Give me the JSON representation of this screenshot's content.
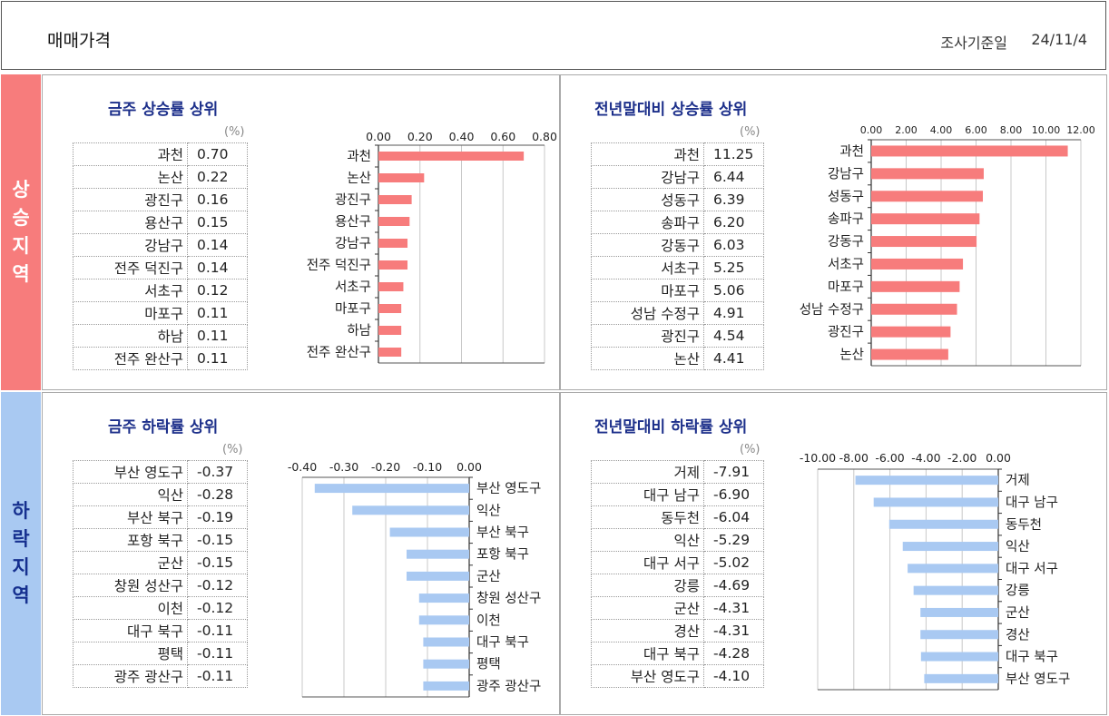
{
  "header": {
    "title": "매매가격",
    "date_label": "조사기준일",
    "date_value": "24/11/4"
  },
  "sections": {
    "up_label": [
      "상",
      "승",
      "지",
      "역"
    ],
    "down_label": [
      "하",
      "락",
      "지",
      "역"
    ]
  },
  "panels": {
    "weekly_up": {
      "title": "금주 상승률 상위",
      "unit": "(%)"
    },
    "yearly_up": {
      "title": "전년말대비 상승률 상위",
      "unit": "(%)"
    },
    "weekly_down": {
      "title": "금주 하락률 상위",
      "unit": "(%)"
    },
    "yearly_down": {
      "title": "전년말대비 하락률 상위",
      "unit": "(%)"
    }
  },
  "colors": {
    "up_bar": "#f77c7c",
    "down_bar": "#a9c9f2",
    "title": "#1c2f8a"
  },
  "chart_data": [
    {
      "id": "weekly_up",
      "type": "bar",
      "orientation": "horizontal",
      "categories": [
        "과천",
        "논산",
        "광진구",
        "용산구",
        "강남구",
        "전주 덕진구",
        "서초구",
        "마포구",
        "하남",
        "전주 완산구"
      ],
      "values": [
        0.7,
        0.22,
        0.16,
        0.15,
        0.14,
        0.14,
        0.12,
        0.11,
        0.11,
        0.11
      ],
      "value_labels": [
        "0.70",
        "0.22",
        "0.16",
        "0.15",
        "0.14",
        "0.14",
        "0.12",
        "0.11",
        "0.11",
        "0.11"
      ],
      "xlim": [
        0,
        0.8
      ],
      "ticks": [
        0,
        0.2,
        0.4,
        0.6,
        0.8
      ],
      "tick_labels": [
        "0.00",
        "0.20",
        "0.40",
        "0.60",
        "0.80"
      ],
      "grid": true,
      "label_side": "left"
    },
    {
      "id": "yearly_up",
      "type": "bar",
      "orientation": "horizontal",
      "categories": [
        "과천",
        "강남구",
        "성동구",
        "송파구",
        "강동구",
        "서초구",
        "마포구",
        "성남 수정구",
        "광진구",
        "논산"
      ],
      "values": [
        11.25,
        6.44,
        6.39,
        6.2,
        6.03,
        5.25,
        5.06,
        4.91,
        4.54,
        4.41
      ],
      "value_labels": [
        "11.25",
        "6.44",
        "6.39",
        "6.20",
        "6.03",
        "5.25",
        "5.06",
        "4.91",
        "4.54",
        "4.41"
      ],
      "xlim": [
        0,
        12
      ],
      "ticks": [
        0,
        2,
        4,
        6,
        8,
        10,
        12
      ],
      "tick_labels": [
        "0.00",
        "2.00",
        "4.00",
        "6.00",
        "8.00",
        "10.00",
        "12.00"
      ],
      "grid": true,
      "label_side": "left"
    },
    {
      "id": "weekly_down",
      "type": "bar",
      "orientation": "horizontal",
      "categories": [
        "부산 영도구",
        "익산",
        "부산 북구",
        "포항 북구",
        "군산",
        "창원 성산구",
        "이천",
        "대구 북구",
        "평택",
        "광주 광산구"
      ],
      "values": [
        -0.37,
        -0.28,
        -0.19,
        -0.15,
        -0.15,
        -0.12,
        -0.12,
        -0.11,
        -0.11,
        -0.11
      ],
      "value_labels": [
        "-0.37",
        "-0.28",
        "-0.19",
        "-0.15",
        "-0.15",
        "-0.12",
        "-0.12",
        "-0.11",
        "-0.11",
        "-0.11"
      ],
      "xlim": [
        -0.4,
        0
      ],
      "ticks": [
        -0.4,
        -0.3,
        -0.2,
        -0.1,
        0
      ],
      "tick_labels": [
        "-0.40",
        "-0.30",
        "-0.20",
        "-0.10",
        "0.00"
      ],
      "grid": true,
      "label_side": "right"
    },
    {
      "id": "yearly_down",
      "type": "bar",
      "orientation": "horizontal",
      "categories": [
        "거제",
        "대구 남구",
        "동두천",
        "익산",
        "대구 서구",
        "강릉",
        "군산",
        "경산",
        "대구 북구",
        "부산 영도구"
      ],
      "values": [
        -7.91,
        -6.9,
        -6.04,
        -5.29,
        -5.02,
        -4.69,
        -4.31,
        -4.31,
        -4.28,
        -4.1
      ],
      "value_labels": [
        "-7.91",
        "-6.90",
        "-6.04",
        "-5.29",
        "-5.02",
        "-4.69",
        "-4.31",
        "-4.31",
        "-4.28",
        "-4.10"
      ],
      "xlim": [
        -10,
        0
      ],
      "ticks": [
        -10,
        -8,
        -6,
        -4,
        -2,
        0
      ],
      "tick_labels": [
        "-10.00",
        "-8.00",
        "-6.00",
        "-4.00",
        "-2.00",
        "0.00"
      ],
      "grid": true,
      "label_side": "right"
    }
  ]
}
